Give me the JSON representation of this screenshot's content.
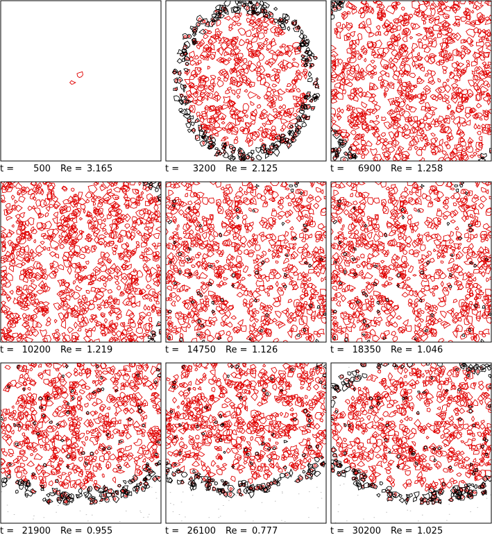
{
  "t_label": "t =",
  "re_label": "Re =",
  "panels": [
    {
      "t": "500",
      "re": "3.165"
    },
    {
      "t": "3200",
      "re": "2.125"
    },
    {
      "t": "6900",
      "re": "1.258"
    },
    {
      "t": "10200",
      "re": "1.219"
    },
    {
      "t": "14750",
      "re": "1.126"
    },
    {
      "t": "18350",
      "re": "1.046"
    },
    {
      "t": "21900",
      "re": "0.955"
    },
    {
      "t": "26100",
      "re": "0.777"
    },
    {
      "t": "30200",
      "re": "1.025"
    }
  ]
}
